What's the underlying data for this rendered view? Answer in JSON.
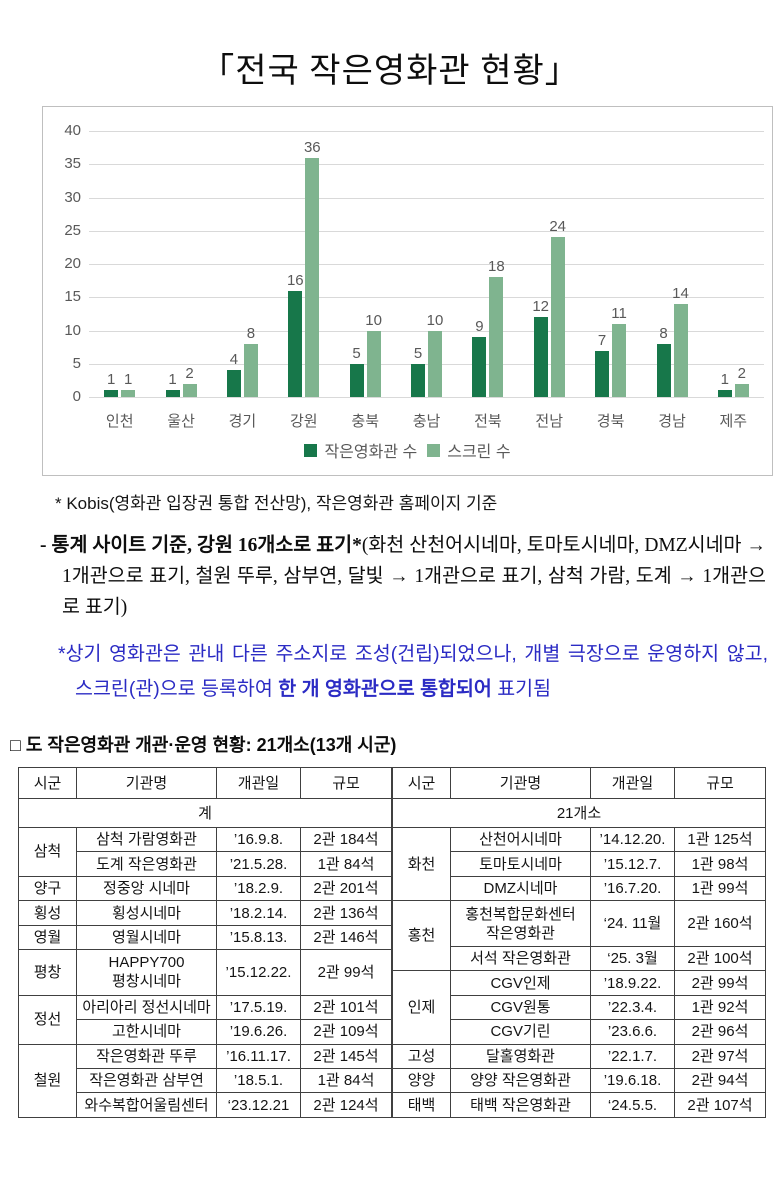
{
  "page": {
    "title": "「전국 작은영화관 현황」"
  },
  "chart_data": {
    "type": "bar",
    "title": "",
    "categories": [
      "인천",
      "울산",
      "경기",
      "강원",
      "충북",
      "충남",
      "전북",
      "전남",
      "경북",
      "경남",
      "제주"
    ],
    "series": [
      {
        "name": "작은영화관 수",
        "color": "#17774a",
        "values": [
          1,
          1,
          4,
          16,
          5,
          5,
          9,
          12,
          7,
          8,
          1
        ]
      },
      {
        "name": "스크린 수",
        "color": "#7fb48f",
        "values": [
          1,
          2,
          8,
          36,
          10,
          10,
          18,
          24,
          11,
          14,
          2
        ]
      }
    ],
    "ylim": [
      0,
      40
    ],
    "ytick_step": 5,
    "grid": true,
    "legend_position": "bottom",
    "value_labels": true
  },
  "notes": {
    "source_note": "* Kobis(영화관 입장권 통합 전산망), 작은영화관 홈페이지 기준",
    "stat_note": {
      "bold": "- 통계 사이트 기준, 강원 16개소로 표기*",
      "normal": "(화천 산천어시네마, 토마토시네마, DMZ시네마 → 1개관으로 표기, 철원 뚜루, 삼부연, 달빛 → 1개관으로 표기, 삼척 가람, 도계 → 1개관으로 표기)"
    },
    "blue_note": {
      "pre": "*상기 영화관은 관내 다른 주소지로 조성(건립)되었으나, 개별 극장으로 운영하지 않고, 스크린(관)으로 등록하여 ",
      "bold": "한 개 영화관으로 통합되어",
      "post": " 표기됨",
      "color": "#2b2bc4"
    }
  },
  "section": {
    "heading": "□ 도 작은영화관 개관·운영 현황: 21개소(13개 시군)"
  },
  "table": {
    "headers": [
      "시군",
      "기관명",
      "개관일",
      "규모"
    ],
    "left": {
      "summary": "계",
      "groups": [
        {
          "sigun": "삼척",
          "rows": [
            {
              "name": "삼척 가람영화관",
              "date": "’16.9.8.",
              "size": "2관 184석"
            },
            {
              "name": "도계 작은영화관",
              "date": "’21.5.28.",
              "size": "1관 84석"
            }
          ]
        },
        {
          "sigun": "양구",
          "rows": [
            {
              "name": "정중앙 시네마",
              "date": "’18.2.9.",
              "size": "2관 201석"
            }
          ]
        },
        {
          "sigun": "횡성",
          "rows": [
            {
              "name": "횡성시네마",
              "date": "’18.2.14.",
              "size": "2관 136석"
            }
          ]
        },
        {
          "sigun": "영월",
          "rows": [
            {
              "name": "영월시네마",
              "date": "’15.8.13.",
              "size": "2관 146석"
            }
          ]
        },
        {
          "sigun": "평창",
          "rows": [
            {
              "name": "HAPPY700 평창시네마",
              "date": "’15.12.22.",
              "size": "2관 99석"
            }
          ]
        },
        {
          "sigun": "정선",
          "rows": [
            {
              "name": "아리아리 정선시네마",
              "date": "’17.5.19.",
              "size": "2관 101석"
            },
            {
              "name": "고한시네마",
              "date": "’19.6.26.",
              "size": "2관 109석"
            }
          ]
        },
        {
          "sigun": "철원",
          "rows": [
            {
              "name": "작은영화관 뚜루",
              "date": "’16.11.17.",
              "size": "2관 145석"
            },
            {
              "name": "작은영화관 삼부연",
              "date": "’18.5.1.",
              "size": "1관 84석"
            },
            {
              "name": "와수복합어울림센터",
              "date": "‘23.12.21",
              "size": "2관 124석"
            }
          ]
        }
      ]
    },
    "right": {
      "summary": "21개소",
      "groups": [
        {
          "sigun": "화천",
          "rows": [
            {
              "name": "산천어시네마",
              "date": "’14.12.20.",
              "size": "1관 125석"
            },
            {
              "name": "토마토시네마",
              "date": "’15.12.7.",
              "size": "1관 98석"
            },
            {
              "name": "DMZ시네마",
              "date": "’16.7.20.",
              "size": "1관 99석"
            }
          ]
        },
        {
          "sigun": "홍천",
          "rows": [
            {
              "name": "홍천복합문화센터 작은영화관",
              "date": "‘24. 11월",
              "size": "2관 160석"
            },
            {
              "name": "서석 작은영화관",
              "date": "‘25. 3월",
              "size": "2관 100석"
            }
          ]
        },
        {
          "sigun": "인제",
          "rows": [
            {
              "name": "CGV인제",
              "date": "’18.9.22.",
              "size": "2관 99석"
            },
            {
              "name": "CGV원통",
              "date": "’22.3.4.",
              "size": "1관 92석"
            },
            {
              "name": "CGV기린",
              "date": "’23.6.6.",
              "size": "2관 96석"
            }
          ]
        },
        {
          "sigun": "고성",
          "rows": [
            {
              "name": "달홀영화관",
              "date": "’22.1.7.",
              "size": "2관 97석"
            }
          ]
        },
        {
          "sigun": "양양",
          "rows": [
            {
              "name": "양양 작은영화관",
              "date": "’19.6.18.",
              "size": "2관 94석"
            }
          ]
        },
        {
          "sigun": "태백",
          "rows": [
            {
              "name": "태백 작은영화관",
              "date": "‘24.5.5.",
              "size": "2관 107석"
            }
          ]
        }
      ]
    }
  }
}
